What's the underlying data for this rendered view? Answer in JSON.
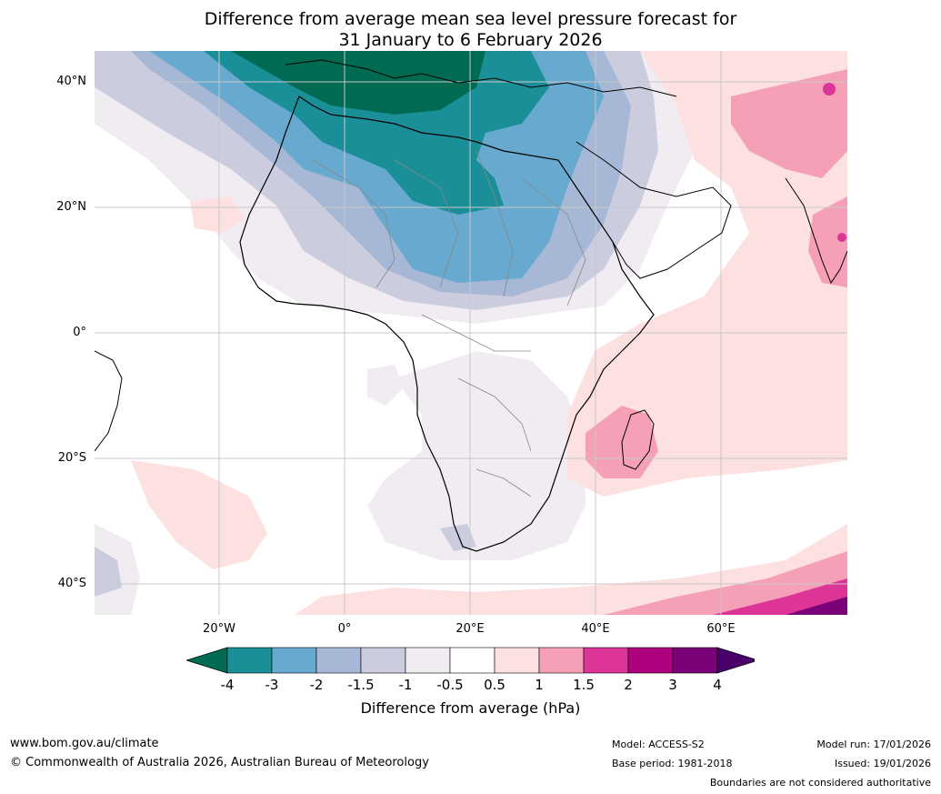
{
  "title": {
    "line1": "Difference from average mean sea level pressure forecast for",
    "line2": "31 January to 6 February 2026"
  },
  "map": {
    "lat_labels": [
      "40°N",
      "20°N",
      "0°",
      "20°S",
      "40°S"
    ],
    "lon_labels": [
      "20°W",
      "0°",
      "20°E",
      "40°E",
      "60°E"
    ]
  },
  "colorbar": {
    "title": "Difference from average (hPa)",
    "ticks": [
      "-4",
      "-3",
      "-2",
      "-1.5",
      "-1",
      "-0.5",
      "0.5",
      "1",
      "1.5",
      "2",
      "3",
      "4"
    ],
    "colors": [
      "#006a52",
      "#1b8f98",
      "#67a9cf",
      "#a6b8d6",
      "#ccccdf",
      "#f1ecf2",
      "#ffffff",
      "#fde0e0",
      "#f5a0b6",
      "#dd3497",
      "#ae017e",
      "#7a0177",
      "#49006a"
    ]
  },
  "footer": {
    "website": "www.bom.gov.au/climate",
    "copyright": "© Commonwealth of Australia 2026, Australian Bureau of Meteorology",
    "model": "Model: ACCESS-S2",
    "base_period": "Base period: 1981-2018",
    "model_run": "Model run: 17/01/2026",
    "issued": "Issued: 19/01/2026",
    "disclaimer": "Boundaries are not considered authoritative"
  }
}
